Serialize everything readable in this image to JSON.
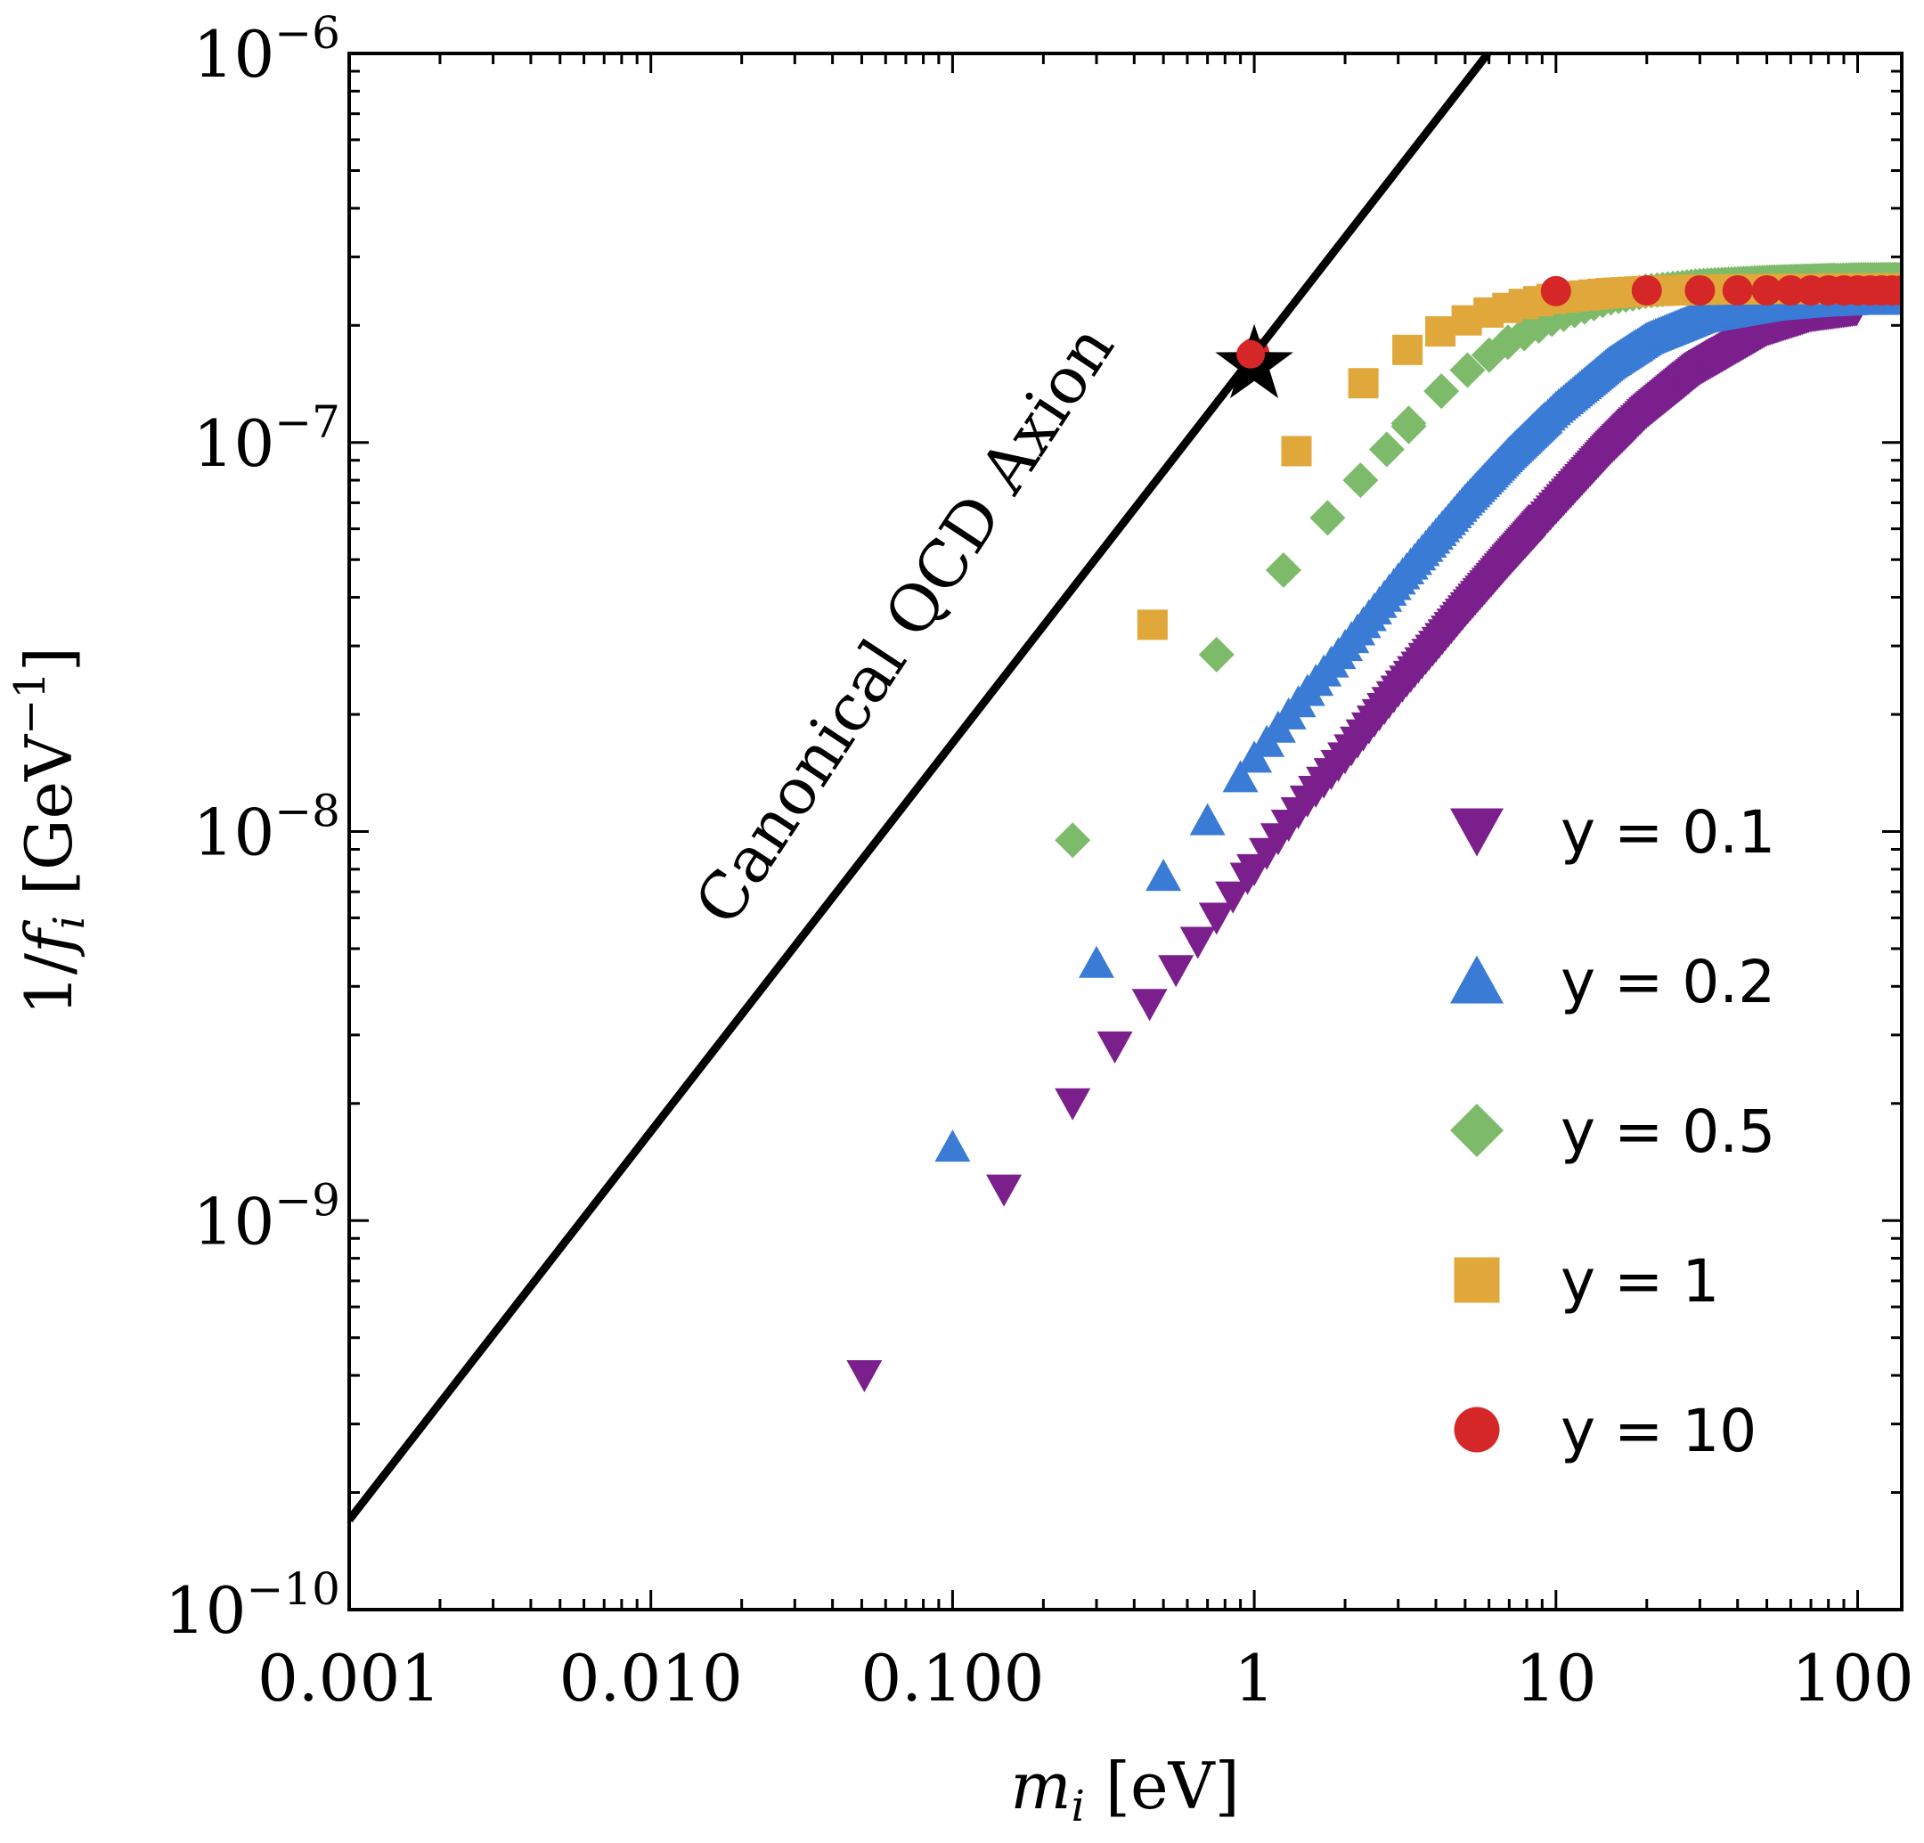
{
  "chart_data": {
    "type": "scatter",
    "x_scale": "log",
    "y_scale": "log",
    "xlim": [
      0.001,
      140
    ],
    "ylim": [
      1e-10,
      1e-06
    ],
    "x_ticks": [
      {
        "value": 0.001,
        "label": "0.001"
      },
      {
        "value": 0.01,
        "label": "0.010"
      },
      {
        "value": 0.1,
        "label": "0.100"
      },
      {
        "value": 1,
        "label": "1"
      },
      {
        "value": 10,
        "label": "10"
      },
      {
        "value": 100,
        "label": "100"
      }
    ],
    "y_ticks": [
      {
        "value": 1e-06,
        "mantissa": "10",
        "exponent": "−6"
      },
      {
        "value": 1e-07,
        "mantissa": "10",
        "exponent": "−7"
      },
      {
        "value": 1e-08,
        "mantissa": "10",
        "exponent": "−8"
      },
      {
        "value": 1e-09,
        "mantissa": "10",
        "exponent": "−9"
      },
      {
        "value": 1e-10,
        "mantissa": "10",
        "exponent": "−10"
      }
    ],
    "xlabel": {
      "var": "m",
      "sub": "i",
      "unit": " [eV]"
    },
    "ylabel": {
      "prefix": "1/",
      "var": "f",
      "sub": "i",
      "unit": " [GeV",
      "exponent": "−1",
      "close": "]"
    },
    "reference_line": {
      "label": "Canonical QCD Axion",
      "color": "#000000",
      "points": [
        [
          0.001,
          1.7e-10
        ],
        [
          5.95,
          1e-06
        ]
      ]
    },
    "star": {
      "x": 1.0,
      "y": 1.65e-07,
      "color": "#000000",
      "dot_color": "#d62728"
    },
    "legend_position": "lower-right",
    "series": [
      {
        "name": "y = 0.1",
        "marker": "triangle-down",
        "color": "#7b1f8c",
        "x_first": [
          0.051,
          0.148,
          0.25,
          0.345,
          0.45,
          0.55,
          0.65,
          0.75,
          0.85,
          0.95
        ],
        "y_first": [
          4e-10,
          1.2e-09,
          2e-09,
          2.8e-09,
          3.6e-09,
          4.4e-09,
          5.2e-09,
          6e-09,
          6.8e-09,
          7.6e-09
        ],
        "x_curve": [
          1.0,
          1.5,
          2,
          3,
          4,
          5,
          7,
          10,
          15,
          20,
          30,
          50,
          70,
          100
        ],
        "y_curve": [
          8e-09,
          1.2e-08,
          1.55e-08,
          2.3e-08,
          3e-08,
          3.7e-08,
          5e-08,
          6.8e-08,
          9.6e-08,
          1.2e-07,
          1.55e-07,
          1.95e-07,
          2.12e-07,
          2.2e-07
        ],
        "x_max": 100
      },
      {
        "name": "y = 0.2",
        "marker": "triangle-up",
        "color": "#3a7bd5",
        "x_first": [
          0.1,
          0.3,
          0.5,
          0.7,
          0.9
        ],
        "y_first": [
          1.55e-09,
          4.6e-09,
          7.7e-09,
          1.07e-08,
          1.38e-08
        ],
        "x_curve": [
          1.0,
          1.5,
          2,
          3,
          4,
          5,
          7,
          10,
          15,
          20,
          30,
          50,
          70,
          100
        ],
        "y_curve": [
          1.55e-08,
          2.3e-08,
          3e-08,
          4.45e-08,
          5.8e-08,
          7.1e-08,
          9.4e-08,
          1.23e-07,
          1.6e-07,
          1.85e-07,
          2.1e-07,
          2.25e-07,
          2.3e-07,
          2.33e-07
        ],
        "x_max": 140
      },
      {
        "name": "y = 0.5",
        "marker": "diamond",
        "color": "#7dbb6b",
        "x_first": [
          0.25,
          0.75,
          1.25,
          1.75,
          2.25,
          2.75,
          3.25
        ],
        "y_first": [
          9.5e-09,
          2.85e-08,
          4.7e-08,
          6.4e-08,
          8e-08,
          9.6e-08,
          1.1e-07
        ],
        "x_curve": [
          3.25,
          4,
          5,
          7,
          10,
          15,
          20,
          30,
          50,
          100
        ],
        "y_curve": [
          1.12e-07,
          1.32e-07,
          1.52e-07,
          1.82e-07,
          2.1e-07,
          2.35e-07,
          2.45e-07,
          2.53e-07,
          2.58e-07,
          2.62e-07
        ],
        "x_max": 140
      },
      {
        "name": "y = 1",
        "marker": "square",
        "color": "#e0a83a",
        "x_first": [
          0.46,
          1.38,
          2.3,
          3.22,
          4.14
        ],
        "y_first": [
          3.4e-08,
          9.5e-08,
          1.42e-07,
          1.73e-07,
          1.93e-07
        ],
        "x_curve": [
          5.06,
          6,
          8,
          10,
          15,
          20,
          30,
          50,
          100
        ],
        "y_curve": [
          2.06e-07,
          2.16e-07,
          2.28e-07,
          2.35e-07,
          2.42e-07,
          2.45e-07,
          2.47e-07,
          2.48e-07,
          2.49e-07
        ],
        "x_max": 140
      },
      {
        "name": "y = 10",
        "marker": "circle",
        "color": "#d62728",
        "x_points": [
          1.0,
          10,
          20,
          30,
          40,
          50,
          60,
          70,
          80,
          90,
          100,
          110,
          120,
          130,
          140
        ],
        "y_points": [
          1.7e-07,
          2.45e-07,
          2.46e-07,
          2.46e-07,
          2.46e-07,
          2.46e-07,
          2.46e-07,
          2.46e-07,
          2.46e-07,
          2.46e-07,
          2.46e-07,
          2.46e-07,
          2.46e-07,
          2.46e-07,
          2.46e-07
        ]
      }
    ]
  }
}
